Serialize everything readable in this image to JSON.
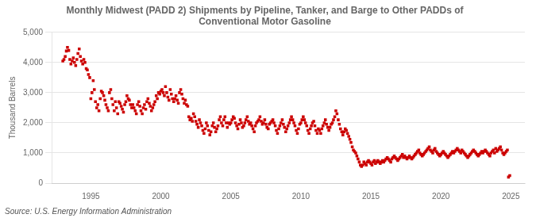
{
  "chart_data": {
    "type": "scatter",
    "title": "Monthly Midwest (PADD 2) Shipments by Pipeline, Tanker, and Barge to Other PADDs of\nConventional Motor Gasoline",
    "ylabel": "Thousand Barrels",
    "source": "Source: U.S. Energy Information Administration",
    "color": "#CC0000",
    "marker": "square",
    "grid": "y",
    "xlim": [
      1992.2,
      2026.0
    ],
    "xticks": [
      1995,
      2000,
      2005,
      2010,
      2015,
      2020,
      2025
    ],
    "ylim": [
      0,
      5000
    ],
    "yticks": [
      0,
      {
        "value": 1000,
        "label": "1,000"
      },
      {
        "value": 2000,
        "label": "2,000"
      },
      {
        "value": 3000,
        "label": "3,000"
      },
      {
        "value": 4000,
        "label": "4,000"
      },
      {
        "value": 5000,
        "label": "5,000"
      }
    ],
    "x": [
      1993.0,
      1993.08,
      1993.17,
      1993.25,
      1993.33,
      1993.42,
      1993.5,
      1993.58,
      1993.67,
      1993.75,
      1993.83,
      1993.92,
      1994.0,
      1994.08,
      1994.17,
      1994.25,
      1994.33,
      1994.42,
      1994.5,
      1994.58,
      1994.67,
      1994.75,
      1994.83,
      1994.92,
      1995.0,
      1995.08,
      1995.17,
      1995.25,
      1995.33,
      1995.42,
      1995.5,
      1995.58,
      1995.67,
      1995.75,
      1995.83,
      1995.92,
      1996.0,
      1996.08,
      1996.17,
      1996.25,
      1996.33,
      1996.42,
      1996.5,
      1996.58,
      1996.67,
      1996.75,
      1996.83,
      1996.92,
      1997.0,
      1997.08,
      1997.17,
      1997.25,
      1997.33,
      1997.42,
      1997.5,
      1997.58,
      1997.67,
      1997.75,
      1997.83,
      1997.92,
      1998.0,
      1998.08,
      1998.17,
      1998.25,
      1998.33,
      1998.42,
      1998.5,
      1998.58,
      1998.67,
      1998.75,
      1998.83,
      1998.92,
      1999.0,
      1999.08,
      1999.17,
      1999.25,
      1999.33,
      1999.42,
      1999.5,
      1999.58,
      1999.67,
      1999.75,
      1999.83,
      1999.92,
      2000.0,
      2000.08,
      2000.17,
      2000.25,
      2000.33,
      2000.42,
      2000.5,
      2000.58,
      2000.67,
      2000.75,
      2000.83,
      2000.92,
      2001.0,
      2001.08,
      2001.17,
      2001.25,
      2001.33,
      2001.42,
      2001.5,
      2001.58,
      2001.67,
      2001.75,
      2001.83,
      2001.92,
      2002.0,
      2002.08,
      2002.17,
      2002.25,
      2002.33,
      2002.42,
      2002.5,
      2002.58,
      2002.67,
      2002.75,
      2002.83,
      2002.92,
      2003.0,
      2003.08,
      2003.17,
      2003.25,
      2003.33,
      2003.42,
      2003.5,
      2003.58,
      2003.67,
      2003.75,
      2003.83,
      2003.92,
      2004.0,
      2004.08,
      2004.17,
      2004.25,
      2004.33,
      2004.42,
      2004.5,
      2004.58,
      2004.67,
      2004.75,
      2004.83,
      2004.92,
      2005.0,
      2005.08,
      2005.17,
      2005.25,
      2005.33,
      2005.42,
      2005.5,
      2005.58,
      2005.67,
      2005.75,
      2005.83,
      2005.92,
      2006.0,
      2006.08,
      2006.17,
      2006.25,
      2006.33,
      2006.42,
      2006.5,
      2006.58,
      2006.67,
      2006.75,
      2006.83,
      2006.92,
      2007.0,
      2007.08,
      2007.17,
      2007.25,
      2007.33,
      2007.42,
      2007.5,
      2007.58,
      2007.67,
      2007.75,
      2007.83,
      2007.92,
      2008.0,
      2008.08,
      2008.17,
      2008.25,
      2008.33,
      2008.42,
      2008.5,
      2008.58,
      2008.67,
      2008.75,
      2008.83,
      2008.92,
      2009.0,
      2009.08,
      2009.17,
      2009.25,
      2009.33,
      2009.42,
      2009.5,
      2009.58,
      2009.67,
      2009.75,
      2009.83,
      2009.92,
      2010.0,
      2010.08,
      2010.17,
      2010.25,
      2010.33,
      2010.42,
      2010.5,
      2010.58,
      2010.67,
      2010.75,
      2010.83,
      2010.92,
      2011.0,
      2011.08,
      2011.17,
      2011.25,
      2011.33,
      2011.42,
      2011.5,
      2011.58,
      2011.67,
      2011.75,
      2011.83,
      2011.92,
      2012.0,
      2012.08,
      2012.17,
      2012.25,
      2012.33,
      2012.42,
      2012.5,
      2012.58,
      2012.67,
      2012.75,
      2012.83,
      2012.92,
      2013.0,
      2013.08,
      2013.17,
      2013.25,
      2013.33,
      2013.42,
      2013.5,
      2013.58,
      2013.67,
      2013.75,
      2013.83,
      2013.92,
      2014.0,
      2014.08,
      2014.17,
      2014.25,
      2014.33,
      2014.42,
      2014.5,
      2014.58,
      2014.67,
      2014.75,
      2014.83,
      2014.92,
      2015.0,
      2015.08,
      2015.17,
      2015.25,
      2015.33,
      2015.42,
      2015.5,
      2015.58,
      2015.67,
      2015.75,
      2015.83,
      2015.92,
      2016.0,
      2016.08,
      2016.17,
      2016.25,
      2016.33,
      2016.42,
      2016.5,
      2016.58,
      2016.67,
      2016.75,
      2016.83,
      2016.92,
      2017.0,
      2017.08,
      2017.17,
      2017.25,
      2017.33,
      2017.42,
      2017.5,
      2017.58,
      2017.67,
      2017.75,
      2017.83,
      2017.92,
      2018.0,
      2018.08,
      2018.17,
      2018.25,
      2018.33,
      2018.42,
      2018.5,
      2018.58,
      2018.67,
      2018.75,
      2018.83,
      2018.92,
      2019.0,
      2019.08,
      2019.17,
      2019.25,
      2019.33,
      2019.42,
      2019.5,
      2019.58,
      2019.67,
      2019.75,
      2019.83,
      2019.92,
      2020.0,
      2020.08,
      2020.17,
      2020.25,
      2020.33,
      2020.42,
      2020.5,
      2020.58,
      2020.67,
      2020.75,
      2020.83,
      2020.92,
      2021.0,
      2021.08,
      2021.17,
      2021.25,
      2021.33,
      2021.42,
      2021.5,
      2021.58,
      2021.67,
      2021.75,
      2021.83,
      2021.92,
      2022.0,
      2022.08,
      2022.17,
      2022.25,
      2022.33,
      2022.42,
      2022.5,
      2022.58,
      2022.67,
      2022.75,
      2022.83,
      2022.92,
      2023.0,
      2023.08,
      2023.17,
      2023.25,
      2023.33,
      2023.42,
      2023.5,
      2023.58,
      2023.67,
      2023.75,
      2023.83,
      2023.92,
      2024.0,
      2024.08,
      2024.17,
      2024.25,
      2024.33,
      2024.42,
      2024.5,
      2024.58,
      2024.67,
      2024.75,
      2024.83,
      2024.92
    ],
    "values": [
      4050,
      4100,
      4200,
      4380,
      4500,
      4400,
      4100,
      3950,
      4050,
      4150,
      4000,
      3900,
      4100,
      4300,
      4450,
      4200,
      4050,
      3950,
      4100,
      4000,
      3800,
      3750,
      3600,
      3500,
      2800,
      3000,
      3400,
      3100,
      2700,
      2500,
      2600,
      2400,
      2800,
      3050,
      3000,
      2900,
      2750,
      2600,
      2500,
      2400,
      3000,
      3100,
      2800,
      2600,
      2400,
      2700,
      2500,
      2300,
      2700,
      2650,
      2550,
      2450,
      2350,
      2600,
      2700,
      2900,
      2800,
      2750,
      2600,
      2500,
      2600,
      2500,
      2400,
      2300,
      2600,
      2700,
      2550,
      2400,
      2300,
      2500,
      2600,
      2450,
      2700,
      2800,
      2650,
      2550,
      2400,
      2500,
      2600,
      2700,
      2900,
      2800,
      3000,
      2950,
      3050,
      3100,
      3000,
      2900,
      3200,
      3000,
      2850,
      2750,
      3100,
      2950,
      2800,
      2700,
      2800,
      2900,
      2750,
      2650,
      3000,
      3100,
      2950,
      2800,
      2650,
      2750,
      2600,
      2550,
      2200,
      2100,
      2150,
      2050,
      2300,
      2200,
      2050,
      1950,
      1850,
      2100,
      2000,
      1900,
      1750,
      1650,
      1800,
      2000,
      1900,
      1750,
      1600,
      1700,
      1900,
      2000,
      1850,
      1700,
      1800,
      1900,
      2100,
      2200,
      2000,
      1900,
      2100,
      2200,
      2000,
      1850,
      2000,
      1950,
      2000,
      2100,
      2200,
      2150,
      2000,
      1900,
      1800,
      1950,
      2100,
      2000,
      1850,
      1900,
      2000,
      2100,
      2200,
      2050,
      1950,
      2000,
      1900,
      1800,
      1700,
      1900,
      2000,
      2050,
      2100,
      2200,
      2050,
      1950,
      2000,
      2100,
      1950,
      1850,
      1800,
      1950,
      2000,
      2050,
      2100,
      2000,
      1900,
      1750,
      1650,
      1800,
      1900,
      2000,
      2100,
      1950,
      1850,
      1700,
      1800,
      1900,
      2000,
      2100,
      2200,
      2100,
      2000,
      1900,
      1750,
      1650,
      1800,
      1950,
      2000,
      2100,
      2200,
      2100,
      2000,
      1900,
      1750,
      1650,
      1800,
      1900,
      2000,
      2050,
      1900,
      1750,
      1650,
      1800,
      1750,
      1650,
      1800,
      1900,
      2000,
      2100,
      1950,
      1850,
      1750,
      1850,
      1950,
      2000,
      2100,
      2200,
      2400,
      2300,
      2100,
      1950,
      1800,
      1700,
      1600,
      1700,
      1800,
      1750,
      1650,
      1550,
      1450,
      1350,
      1200,
      1100,
      1050,
      1000,
      900,
      800,
      700,
      600,
      550,
      600,
      700,
      650,
      600,
      700,
      750,
      700,
      650,
      600,
      700,
      750,
      650,
      700,
      750,
      700,
      650,
      700,
      750,
      700,
      750,
      800,
      850,
      800,
      750,
      700,
      800,
      850,
      900,
      850,
      800,
      750,
      800,
      850,
      900,
      950,
      850,
      900,
      850,
      800,
      850,
      900,
      850,
      800,
      850,
      900,
      950,
      1000,
      1050,
      1100,
      1000,
      950,
      900,
      950,
      1000,
      1050,
      1100,
      1150,
      1200,
      1100,
      1050,
      1000,
      1100,
      1150,
      1050,
      1000,
      950,
      900,
      950,
      1000,
      1050,
      1000,
      950,
      900,
      850,
      900,
      950,
      1000,
      1050,
      1000,
      1050,
      1100,
      1150,
      1100,
      1050,
      1000,
      1100,
      1050,
      1000,
      950,
      900,
      850,
      900,
      950,
      1000,
      1050,
      1100,
      1050,
      1000,
      950,
      900,
      950,
      1000,
      1050,
      1000,
      1050,
      1100,
      1050,
      1000,
      950,
      900,
      1000,
      1050,
      1100,
      1000,
      1150,
      1050,
      1100,
      1150,
      1200,
      1100,
      1000,
      950,
      1000,
      1050,
      1100,
      200,
      250
    ]
  }
}
